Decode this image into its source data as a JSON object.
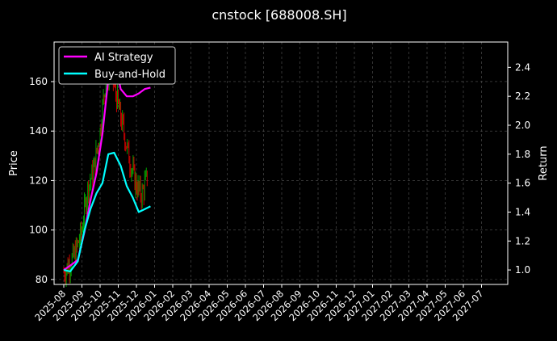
{
  "chart_data": {
    "type": "line",
    "title": "cnstock [688008.SH]",
    "ylabel": "Price",
    "y2label": "Return",
    "ylim": [
      78,
      176
    ],
    "y2lim": [
      0.9,
      2.575
    ],
    "yticks": [
      80,
      100,
      120,
      140,
      160
    ],
    "y2ticks": [
      "1.0",
      "1.2",
      "1.4",
      "1.6",
      "1.8",
      "2.0",
      "2.2",
      "2.4"
    ],
    "xticks": [
      "2025-08",
      "2025-09",
      "2025-10",
      "2025-11",
      "2025-12",
      "2026-01",
      "2026-02",
      "2026-03",
      "2026-04",
      "2026-05",
      "2026-06",
      "2026-07",
      "2026-08",
      "2026-09",
      "2026-10",
      "2026-11",
      "2026-12",
      "2027-01",
      "2027-02",
      "2027-03",
      "2027-04",
      "2027-05",
      "2027-06",
      "2027-07"
    ],
    "grid": true,
    "legend_position": "top-left",
    "colors": {
      "ai_strategy": "#ff00ff",
      "buy_and_hold": "#00ffff",
      "up": "#00a000",
      "down": "#cc0000",
      "background": "#000000"
    },
    "price_series": {
      "x": [
        "2025-08-01",
        "2025-08-10",
        "2025-08-20",
        "2025-09-01",
        "2025-09-10",
        "2025-09-20",
        "2025-10-01",
        "2025-10-10",
        "2025-10-20",
        "2025-11-01",
        "2025-11-10",
        "2025-11-20",
        "2025-12-01",
        "2025-12-10",
        "2025-12-20"
      ],
      "values": [
        83,
        86,
        90,
        100,
        116,
        124,
        140,
        160,
        165,
        150,
        140,
        128,
        118,
        114,
        122
      ]
    },
    "series": [
      {
        "name": "AI Strategy",
        "x": [
          "2025-08-01",
          "2025-08-12",
          "2025-08-25",
          "2025-09-05",
          "2025-09-15",
          "2025-09-25",
          "2025-10-05",
          "2025-10-15",
          "2025-10-25",
          "2025-11-05",
          "2025-11-15",
          "2025-11-25",
          "2025-12-05",
          "2025-12-15",
          "2025-12-25"
        ],
        "values": [
          1.0,
          1.03,
          1.07,
          1.26,
          1.48,
          1.67,
          1.94,
          2.32,
          2.47,
          2.25,
          2.2,
          2.2,
          2.22,
          2.25,
          2.26
        ]
      },
      {
        "name": "Buy-and-Hold",
        "x": [
          "2025-08-01",
          "2025-08-12",
          "2025-08-25",
          "2025-09-05",
          "2025-09-15",
          "2025-09-25",
          "2025-10-05",
          "2025-10-15",
          "2025-10-25",
          "2025-11-05",
          "2025-11-15",
          "2025-11-25",
          "2025-12-05",
          "2025-12-15",
          "2025-12-25"
        ],
        "values": [
          1.0,
          0.99,
          1.06,
          1.27,
          1.42,
          1.53,
          1.6,
          1.8,
          1.81,
          1.72,
          1.58,
          1.5,
          1.4,
          1.42,
          1.44
        ]
      }
    ]
  }
}
